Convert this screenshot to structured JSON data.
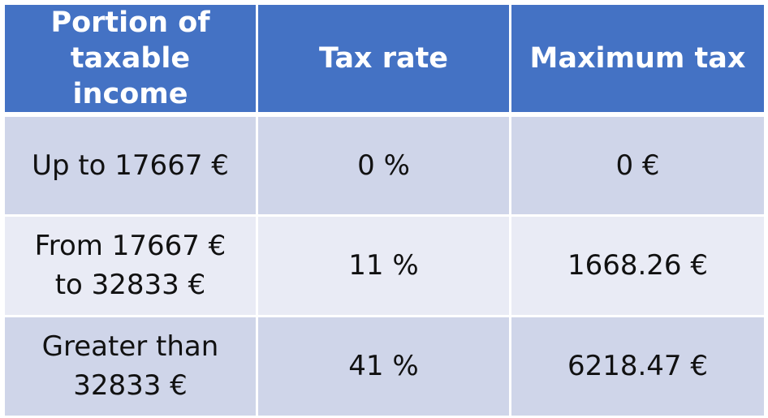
{
  "headers": {
    "portion_line1": "Portion of",
    "portion_line2": "taxable income",
    "tax_rate": "Tax rate",
    "maximum_tax": "Maximum tax"
  },
  "rows": [
    {
      "portion_line1": "Up to 17667 €",
      "portion_line2": "",
      "rate": "0 %",
      "max_tax": "0 €"
    },
    {
      "portion_line1": "From 17667 €",
      "portion_line2": "to 32833 €",
      "rate": "11 %",
      "max_tax": "1668.26 €"
    },
    {
      "portion_line1": "Greater than",
      "portion_line2": "32833 €",
      "rate": "41 %",
      "max_tax": "6218.47 €"
    }
  ],
  "colors": {
    "header_bg": "#4472c4",
    "row_dark_bg": "#cfd5e9",
    "row_light_bg": "#e9ebf5",
    "border": "#ffffff"
  }
}
